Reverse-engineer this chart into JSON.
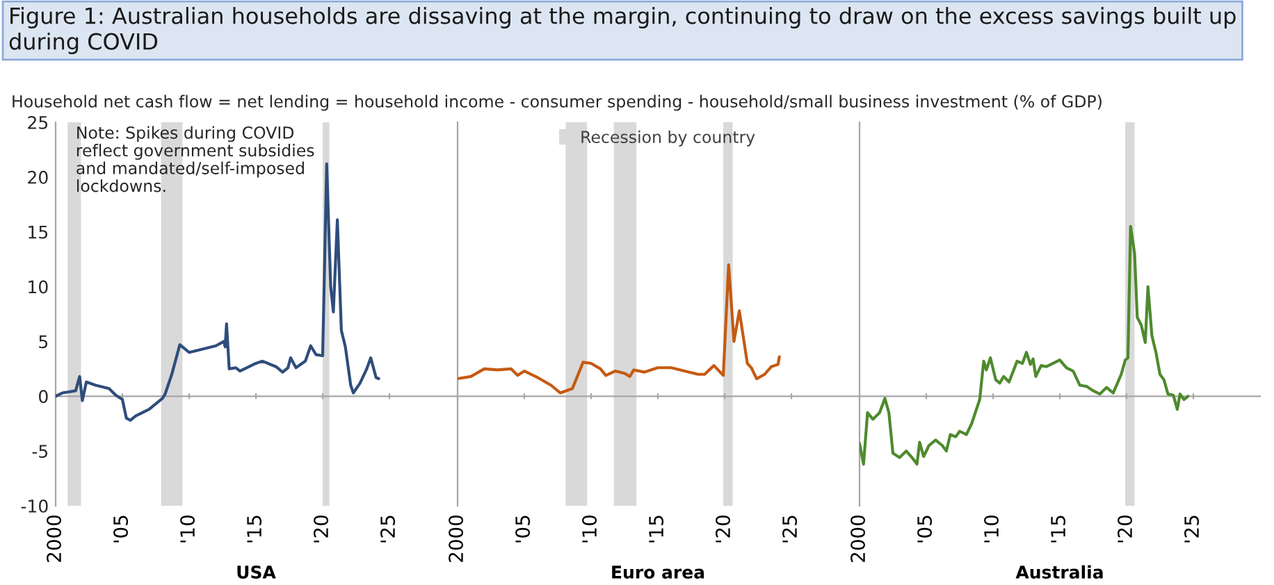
{
  "chart_data": [
    {
      "type": "line",
      "title": "Figure 1: Australian households are dissaving at the margin, continuing to draw on the excess savings built up during COVID",
      "subtitle": "Household net cash flow = net lending = household income - consumer spending - household/small business investment (% of GDP)",
      "xlabel": "USA",
      "annotations": [
        "Note: Spikes during COVID\nreflect government subsidies\nand mandated/self-imposed\nlockdowns."
      ],
      "xlim": [
        2000,
        2030
      ],
      "xticks": [
        {
          "value": 2000,
          "label": "2000"
        },
        {
          "value": 2005,
          "label": "'05"
        },
        {
          "value": 2010,
          "label": "'10"
        },
        {
          "value": 2015,
          "label": "'15"
        },
        {
          "value": 2020,
          "label": "'20"
        },
        {
          "value": 2025,
          "label": "'25"
        }
      ],
      "ylim": [
        -10,
        25
      ],
      "yticks": [
        -10,
        -5,
        0,
        5,
        10,
        15,
        20,
        25
      ],
      "bands": [
        {
          "axis": "x",
          "from": 2000.9,
          "to": 2001.9,
          "color": "#d9d9d9"
        },
        {
          "axis": "x",
          "from": 2007.9,
          "to": 2009.5,
          "color": "#d9d9d9"
        },
        {
          "axis": "x",
          "from": 2020.0,
          "to": 2020.5,
          "color": "#d9d9d9"
        }
      ],
      "series": [
        {
          "color": "#2e4d7b",
          "x": [
            2000,
            2000.5,
            2001,
            2001.5,
            2001.8,
            2002.0,
            2002.3,
            2003,
            2004,
            2004.5,
            2005.0,
            2005.3,
            2005.6,
            2006,
            2007,
            2008,
            2008.2,
            2008.7,
            2009.3,
            2010,
            2011,
            2012,
            2012.6,
            2012.7,
            2012.8,
            2013.0,
            2013.5,
            2013.8,
            2015,
            2015.5,
            2016.5,
            2017,
            2017.4,
            2017.6,
            2018,
            2018.7,
            2019.1,
            2019.5,
            2020.0,
            2020.3,
            2020.6,
            2020.8,
            2021.1,
            2021.4,
            2021.7,
            2022.1,
            2022.3,
            2022.8,
            2023.3,
            2023.6,
            2024.0,
            2024.2
          ],
          "values": [
            0,
            0.3,
            0.4,
            0.5,
            1.8,
            -0.4,
            1.3,
            1.0,
            0.7,
            0.1,
            -0.3,
            -2.0,
            -2.2,
            -1.8,
            -1.2,
            -0.2,
            0.2,
            2.0,
            4.7,
            4.0,
            4.3,
            4.6,
            5.0,
            4.5,
            6.6,
            2.5,
            2.6,
            2.3,
            3.0,
            3.2,
            2.7,
            2.2,
            2.6,
            3.5,
            2.6,
            3.2,
            4.6,
            3.8,
            3.7,
            21.2,
            10.0,
            7.7,
            16.1,
            6.0,
            4.5,
            1.0,
            0.3,
            1.2,
            2.5,
            3.5,
            1.7,
            1.6
          ]
        }
      ]
    },
    {
      "type": "line",
      "xlabel": "Euro area",
      "tick_labels": "x",
      "legend": "top",
      "xlim": [
        2000,
        2030
      ],
      "xticks": [
        {
          "value": 2000,
          "label": "2000"
        },
        {
          "value": 2005,
          "label": "'05"
        },
        {
          "value": 2010,
          "label": "'10"
        },
        {
          "value": 2015,
          "label": "'15"
        },
        {
          "value": 2020,
          "label": "'20"
        },
        {
          "value": 2025,
          "label": "'25"
        }
      ],
      "ylim": [
        -10,
        25
      ],
      "yticks": [
        -10,
        -5,
        0,
        5,
        10,
        15,
        20,
        25
      ],
      "bands": [
        {
          "axis": "x",
          "from": 2008.1,
          "to": 2009.7,
          "color": "#d9d9d9",
          "label": "Recession by country"
        },
        {
          "axis": "x",
          "from": 2011.7,
          "to": 2013.4,
          "color": "#d9d9d9"
        },
        {
          "axis": "x",
          "from": 2019.9,
          "to": 2020.6,
          "color": "#d9d9d9"
        }
      ],
      "series": [
        {
          "color": "#c55a11",
          "x": [
            2000,
            2001,
            2002,
            2003,
            2004,
            2004.5,
            2005,
            2006,
            2007,
            2007.7,
            2008.6,
            2009.4,
            2010,
            2010.7,
            2011.1,
            2011.8,
            2012.5,
            2012.9,
            2013.2,
            2014,
            2015,
            2016,
            2017,
            2018,
            2018.5,
            2019.2,
            2019.9,
            2020.3,
            2020.7,
            2021.1,
            2021.7,
            2022.0,
            2022.4,
            2023,
            2023.5,
            2024,
            2024.1
          ],
          "values": [
            1.6,
            1.8,
            2.5,
            2.4,
            2.5,
            1.9,
            2.3,
            1.7,
            1.0,
            0.3,
            0.7,
            3.1,
            3.0,
            2.5,
            1.9,
            2.3,
            2.1,
            1.8,
            2.4,
            2.2,
            2.6,
            2.6,
            2.3,
            2.0,
            2.0,
            2.8,
            1.9,
            12.0,
            5.0,
            7.8,
            3.0,
            2.6,
            1.6,
            2.0,
            2.7,
            2.9,
            3.6
          ]
        }
      ]
    },
    {
      "type": "line",
      "xlabel": "Australia",
      "tick_labels": "x",
      "xlim": [
        2000,
        2030
      ],
      "xticks": [
        {
          "value": 2000,
          "label": "2000"
        },
        {
          "value": 2005,
          "label": "'05"
        },
        {
          "value": 2010,
          "label": "'10"
        },
        {
          "value": 2015,
          "label": "'15"
        },
        {
          "value": 2020,
          "label": "'20"
        },
        {
          "value": 2025,
          "label": "'25"
        }
      ],
      "ylim": [
        -10,
        25
      ],
      "yticks": [
        -10,
        -5,
        0,
        5,
        10,
        15,
        20,
        25
      ],
      "bands": [
        {
          "axis": "x",
          "from": 2019.9,
          "to": 2020.6,
          "color": "#d9d9d9"
        }
      ],
      "series": [
        {
          "color": "#4e8a2e",
          "x": [
            2000,
            2000.3,
            2000.6,
            2001,
            2001.5,
            2001.9,
            2002.2,
            2002.5,
            2003,
            2003.5,
            2004,
            2004.3,
            2004.5,
            2004.8,
            2005.2,
            2005.7,
            2006.2,
            2006.5,
            2006.8,
            2007.2,
            2007.5,
            2008,
            2008.4,
            2009,
            2009.3,
            2009.5,
            2009.8,
            2010.2,
            2010.5,
            2010.8,
            2011.2,
            2011.8,
            2012.2,
            2012.5,
            2012.8,
            2013,
            2013.2,
            2013.6,
            2014,
            2014.5,
            2015,
            2015.5,
            2016,
            2016.5,
            2017,
            2017.5,
            2018,
            2018.5,
            2019,
            2019.6,
            2019.9,
            2020.1,
            2020.3,
            2020.6,
            2020.8,
            2021.1,
            2021.4,
            2021.6,
            2021.9,
            2022.2,
            2022.5,
            2022.8,
            2023.1,
            2023.5,
            2023.8,
            2024.0,
            2024.3,
            2024.6
          ],
          "values": [
            -4.3,
            -6.2,
            -1.5,
            -2.1,
            -1.5,
            -0.2,
            -1.5,
            -5.2,
            -5.6,
            -5.0,
            -5.7,
            -6.2,
            -4.2,
            -5.5,
            -4.5,
            -4.0,
            -4.5,
            -5.0,
            -3.5,
            -3.7,
            -3.2,
            -3.5,
            -2.5,
            -0.3,
            3.2,
            2.4,
            3.5,
            1.5,
            1.2,
            1.8,
            1.3,
            3.2,
            3.0,
            4.0,
            2.9,
            3.4,
            1.8,
            2.8,
            2.7,
            3.0,
            3.3,
            2.6,
            2.3,
            1.0,
            0.9,
            0.5,
            0.2,
            0.8,
            0.3,
            2.0,
            3.3,
            3.5,
            15.5,
            13.0,
            7.2,
            6.5,
            4.9,
            10.0,
            5.5,
            4.0,
            2.0,
            1.5,
            0.2,
            0.1,
            -1.2,
            0.2,
            -0.3,
            0.0
          ]
        }
      ]
    }
  ]
}
